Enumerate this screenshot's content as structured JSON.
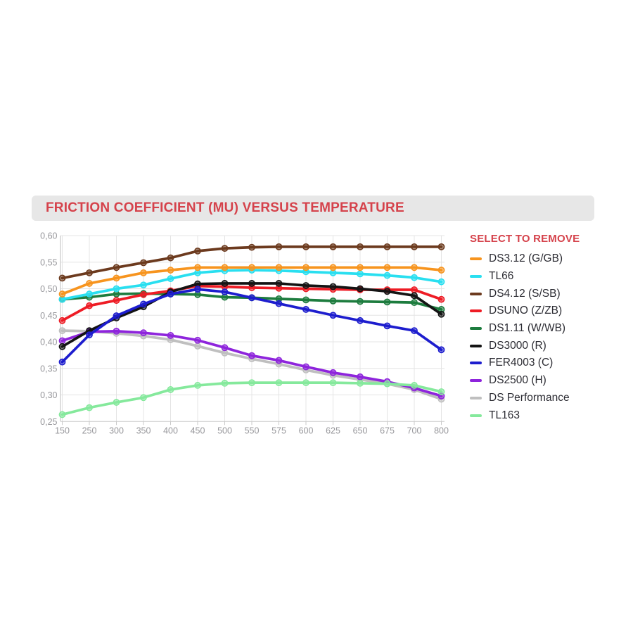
{
  "header": {
    "title": "FRICTION COEFFICIENT (MU) VERSUS TEMPERATURE",
    "title_color": "#d5424b",
    "bar_color": "#e7e7e7"
  },
  "legend": {
    "title": "SELECT TO REMOVE",
    "title_color": "#d5424b"
  },
  "chart_data": {
    "type": "line",
    "title": "FRICTION COEFFICIENT (MU) VERSUS TEMPERATURE",
    "xlabel": "",
    "ylabel": "",
    "grid": true,
    "marker": "circle",
    "legend_position": "right",
    "legend_title": "SELECT TO REMOVE",
    "categories": [
      150,
      250,
      300,
      350,
      400,
      450,
      500,
      550,
      575,
      600,
      625,
      650,
      675,
      700,
      800
    ],
    "x_tick_labels": [
      "150",
      "250",
      "300",
      "350",
      "400",
      "450",
      "500",
      "550",
      "575",
      "600",
      "625",
      "650",
      "675",
      "700",
      "800"
    ],
    "ylim": [
      0.25,
      0.6
    ],
    "y_ticks": [
      0.6,
      0.55,
      0.5,
      0.45,
      0.4,
      0.35,
      0.3,
      0.25
    ],
    "y_tick_labels": [
      "0,60",
      "0,55",
      "0,50",
      "0,45",
      "0,40",
      "0,35",
      "0,30",
      "0,25"
    ],
    "series": [
      {
        "name": "DS3.12 (G/GB)",
        "color": "#F7941E",
        "values": [
          0.49,
          0.51,
          0.52,
          0.53,
          0.535,
          0.54,
          0.54,
          0.54,
          0.54,
          0.54,
          0.54,
          0.54,
          0.54,
          0.54,
          0.535
        ]
      },
      {
        "name": "TL66",
        "color": "#29DFF0",
        "values": [
          0.48,
          0.49,
          0.5,
          0.507,
          0.519,
          0.53,
          0.534,
          0.535,
          0.534,
          0.532,
          0.53,
          0.528,
          0.525,
          0.521,
          0.513
        ]
      },
      {
        "name": "DS4.12 (S/SB)",
        "color": "#6C3A1E",
        "values": [
          0.52,
          0.53,
          0.54,
          0.549,
          0.558,
          0.571,
          0.576,
          0.578,
          0.579,
          0.579,
          0.579,
          0.579,
          0.579,
          0.579,
          0.579
        ]
      },
      {
        "name": "DSUNO (Z/ZB)",
        "color": "#EE1C25",
        "values": [
          0.44,
          0.468,
          0.478,
          0.489,
          0.496,
          0.505,
          0.504,
          0.502,
          0.501,
          0.5,
          0.499,
          0.498,
          0.498,
          0.498,
          0.48
        ]
      },
      {
        "name": "DS1.11 (W/WB)",
        "color": "#1D7C3E",
        "values": [
          0.48,
          0.484,
          0.49,
          0.491,
          0.49,
          0.489,
          0.484,
          0.483,
          0.481,
          0.479,
          0.477,
          0.476,
          0.475,
          0.474,
          0.461
        ]
      },
      {
        "name": "DS3000 (R)",
        "color": "#141414",
        "values": [
          0.391,
          0.421,
          0.445,
          0.466,
          0.494,
          0.509,
          0.51,
          0.51,
          0.51,
          0.506,
          0.504,
          0.5,
          0.495,
          0.487,
          0.452
        ]
      },
      {
        "name": "FER4003 (C)",
        "color": "#1D1DCE",
        "values": [
          0.362,
          0.413,
          0.449,
          0.471,
          0.49,
          0.499,
          0.494,
          0.483,
          0.472,
          0.461,
          0.45,
          0.44,
          0.43,
          0.421,
          0.385
        ]
      },
      {
        "name": "DS2500 (H)",
        "color": "#8E24DC",
        "values": [
          0.402,
          0.419,
          0.42,
          0.417,
          0.412,
          0.403,
          0.389,
          0.374,
          0.365,
          0.353,
          0.342,
          0.334,
          0.325,
          0.313,
          0.298
        ]
      },
      {
        "name": "DS Performance",
        "color": "#BFBFBF",
        "values": [
          0.421,
          0.42,
          0.416,
          0.411,
          0.404,
          0.392,
          0.379,
          0.368,
          0.358,
          0.347,
          0.337,
          0.329,
          0.321,
          0.31,
          0.292
        ]
      },
      {
        "name": "TL163",
        "color": "#85E99C",
        "values": [
          0.263,
          0.276,
          0.286,
          0.295,
          0.31,
          0.318,
          0.322,
          0.323,
          0.323,
          0.323,
          0.323,
          0.322,
          0.321,
          0.318,
          0.306
        ]
      }
    ]
  }
}
